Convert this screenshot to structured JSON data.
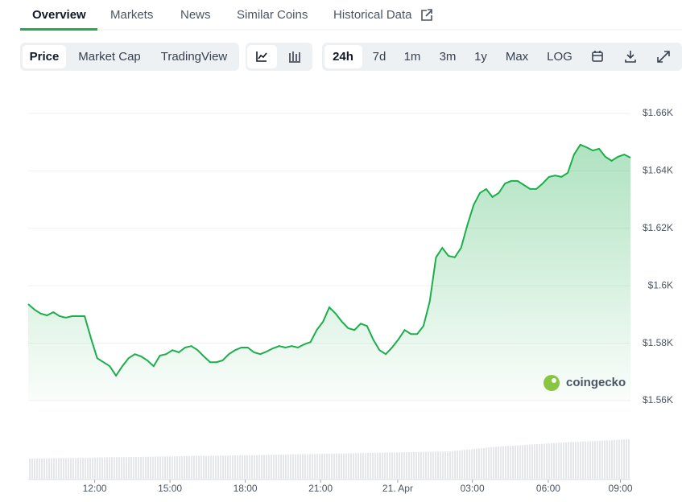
{
  "tabs": [
    "Overview",
    "Markets",
    "News",
    "Similar Coins",
    "Historical Data"
  ],
  "toolbar": {
    "chart_kind": [
      "Price",
      "Market Cap",
      "TradingView"
    ],
    "ranges": [
      "24h",
      "7d",
      "1m",
      "3m",
      "1y",
      "Max",
      "LOG"
    ]
  },
  "chart_data": {
    "type": "line",
    "watermark": "coingecko",
    "color": "#1bae4b",
    "values": [
      1593.6,
      1591.7,
      1590.3,
      1589.7,
      1590.8,
      1589.4,
      1588.9,
      1589.4,
      1589.4,
      1589.4,
      1581.8,
      1574.8,
      1573.4,
      1572,
      1568.7,
      1572,
      1574.8,
      1576.2,
      1575.4,
      1574,
      1572,
      1575.7,
      1576.2,
      1577.6,
      1576.8,
      1578.5,
      1579,
      1577.6,
      1575.4,
      1573.4,
      1573.4,
      1574,
      1576.2,
      1577.6,
      1578.5,
      1578.5,
      1576.8,
      1576.2,
      1577.1,
      1578.2,
      1579,
      1578.5,
      1579,
      1578.5,
      1579.6,
      1580.4,
      1584.6,
      1587.5,
      1592.5,
      1590.3,
      1587.5,
      1585.2,
      1584.6,
      1586.8,
      1586,
      1581.3,
      1577.6,
      1576.2,
      1578.5,
      1581.3,
      1584.6,
      1583.2,
      1583.2,
      1586,
      1594.5,
      1609.9,
      1613.2,
      1610.4,
      1609.9,
      1613.2,
      1621.1,
      1628.1,
      1632.3,
      1633.7,
      1630.9,
      1632.3,
      1635.6,
      1636.5,
      1636.5,
      1635.1,
      1633.7,
      1633.7,
      1635.6,
      1637.9,
      1638.4,
      1637.9,
      1639.3,
      1645.7,
      1649.1,
      1648.2,
      1647.1,
      1647.7,
      1644.9,
      1643.5,
      1644.9,
      1645.7,
      1644.6
    ],
    "xlim": [
      0,
      96
    ],
    "xticks": [
      {
        "value": 10.6,
        "label": "12:00"
      },
      {
        "value": 22.6,
        "label": "15:00"
      },
      {
        "value": 34.6,
        "label": "18:00"
      },
      {
        "value": 46.6,
        "label": "21:00"
      },
      {
        "value": 58.9,
        "label": "21. Apr"
      },
      {
        "value": 70.8,
        "label": "03:00"
      },
      {
        "value": 82.9,
        "label": "06:00"
      },
      {
        "value": 94.4,
        "label": "09:00"
      }
    ],
    "ylim": [
      1560,
      1660
    ],
    "yticks": [
      {
        "value": 1560,
        "label": "$1.56K"
      },
      {
        "value": 1580,
        "label": "$1.58K"
      },
      {
        "value": 1600,
        "label": "$1.6K"
      },
      {
        "value": 1620,
        "label": "$1.62K"
      },
      {
        "value": 1640,
        "label": "$1.64K"
      },
      {
        "value": 1660,
        "label": "$1.66K"
      }
    ],
    "grid": true
  }
}
